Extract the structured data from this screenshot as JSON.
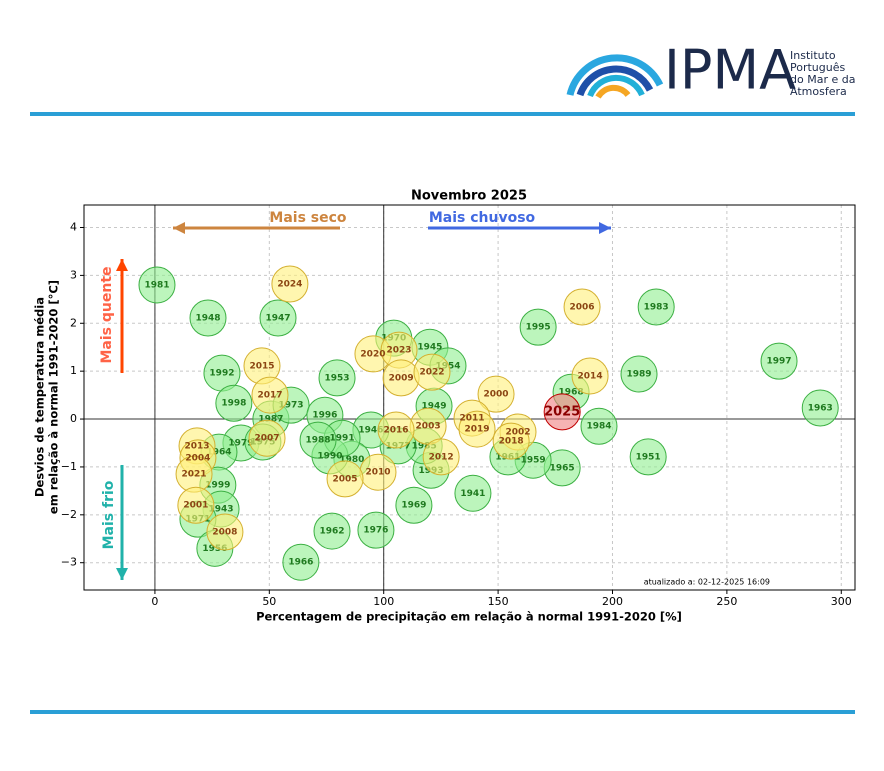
{
  "header": {
    "logo_text": "IPMA",
    "institute_lines": [
      "Instituto",
      "Português",
      "do Mar e da",
      "Atmosfera"
    ]
  },
  "chart_data": {
    "type": "scatter",
    "title": "Novembro 2025",
    "xlabel": "Percentagem de precipitação em relação à normal 1991-2020 [%]",
    "ylabel": [
      "Desvios de temperatura média",
      "em relação à normal 1991-2020 [°C]"
    ],
    "annotations": {
      "dry": "Mais seco",
      "wet": "Mais chuvoso",
      "warm": "Mais quente",
      "cold": "Mais frio",
      "updated": "atualizado a: 02-12-2025 16:09"
    },
    "xlim": [
      -31,
      306
    ],
    "ylim": [
      -3.57,
      4.47
    ],
    "xticks": [
      0,
      50,
      100,
      150,
      200,
      250,
      300
    ],
    "yticks": [
      {
        "value": -3,
        "label": "−3"
      },
      {
        "value": -2,
        "label": "−2"
      },
      {
        "value": -1,
        "label": "−1"
      },
      0,
      1,
      2,
      3,
      4
    ],
    "reference_x": [
      0,
      100
    ],
    "reference_y": [
      0
    ],
    "grid": true,
    "series": [
      {
        "color": "#90ee90",
        "edgecolor": "#3cb043",
        "label_color": "#1f7a1f",
        "labels": [
          "1981",
          "1948",
          "1947",
          "1992",
          "1998",
          "1987",
          "1973",
          "1953",
          "1996",
          "1970",
          "1945",
          "1954",
          "1949",
          "1995",
          "1983",
          "1989",
          "1997",
          "1963",
          "1968",
          "1984",
          "1951",
          "1965",
          "1959",
          "1961",
          "1941",
          "1969",
          "1976",
          "1962",
          "1966",
          "1993",
          "1985",
          "1977",
          "1946",
          "1980",
          "1990",
          "1991",
          "1988",
          "1979",
          "1964",
          "1999",
          "1943",
          "1971",
          "1956",
          "1975"
        ],
        "x": [
          0.9,
          23.2,
          53.8,
          29.3,
          34.5,
          50.7,
          59.5,
          79.6,
          74.3,
          104.4,
          120.2,
          128.1,
          122.0,
          167.5,
          219.1,
          211.6,
          272.8,
          290.8,
          181.9,
          194.1,
          215.6,
          178.0,
          165.3,
          154.3,
          139.0,
          113.2,
          96.6,
          77.4,
          63.8,
          120.7,
          117.7,
          106.3,
          94.4,
          86.1,
          76.5,
          81.8,
          71.3,
          37.6,
          28.0,
          27.5,
          28.9,
          18.8,
          26.2,
          47.2
        ],
        "y": [
          2.8,
          2.11,
          2.11,
          0.96,
          0.33,
          0.0,
          0.29,
          0.86,
          0.08,
          1.69,
          1.5,
          1.11,
          0.27,
          1.92,
          2.34,
          0.94,
          1.21,
          0.23,
          0.56,
          -0.15,
          -0.79,
          -1.02,
          -0.86,
          -0.79,
          -1.55,
          -1.8,
          -2.32,
          -2.34,
          -2.99,
          -1.07,
          -0.56,
          -0.56,
          -0.23,
          -0.84,
          -0.77,
          -0.4,
          -0.44,
          -0.5,
          -0.69,
          -1.38,
          -1.88,
          -2.09,
          -2.7,
          -0.48
        ]
      },
      {
        "color": "#fff07a",
        "edgecolor": "#d4b030",
        "label_color": "#8b4513",
        "labels": [
          "2024",
          "2015",
          "2017",
          "2007",
          "2020",
          "2023",
          "2009",
          "2022",
          "2000",
          "2014",
          "2006",
          "2011",
          "2019",
          "2002",
          "2018",
          "2003",
          "2016",
          "2012",
          "2010",
          "2005",
          "2013",
          "2004",
          "2021",
          "2001",
          "2008"
        ],
        "x": [
          59.0,
          46.8,
          50.3,
          49.0,
          95.3,
          106.7,
          107.6,
          121.1,
          149.1,
          190.2,
          186.7,
          138.6,
          140.8,
          158.7,
          155.7,
          119.4,
          105.4,
          125.1,
          97.5,
          83.1,
          18.4,
          18.8,
          17.1,
          17.9,
          30.6
        ],
        "y": [
          2.82,
          1.11,
          0.5,
          -0.4,
          1.36,
          1.44,
          0.86,
          0.98,
          0.52,
          0.9,
          2.34,
          0.02,
          -0.21,
          -0.27,
          -0.46,
          -0.15,
          -0.23,
          -0.79,
          -1.11,
          -1.25,
          -0.56,
          -0.81,
          -1.15,
          -1.8,
          -2.36
        ]
      },
      {
        "color": "#f08080",
        "edgecolor": "#c00000",
        "label_color": "#8b0000",
        "labels": [
          "2025"
        ],
        "x": [
          178.0
        ],
        "y": [
          0.15
        ]
      }
    ]
  }
}
